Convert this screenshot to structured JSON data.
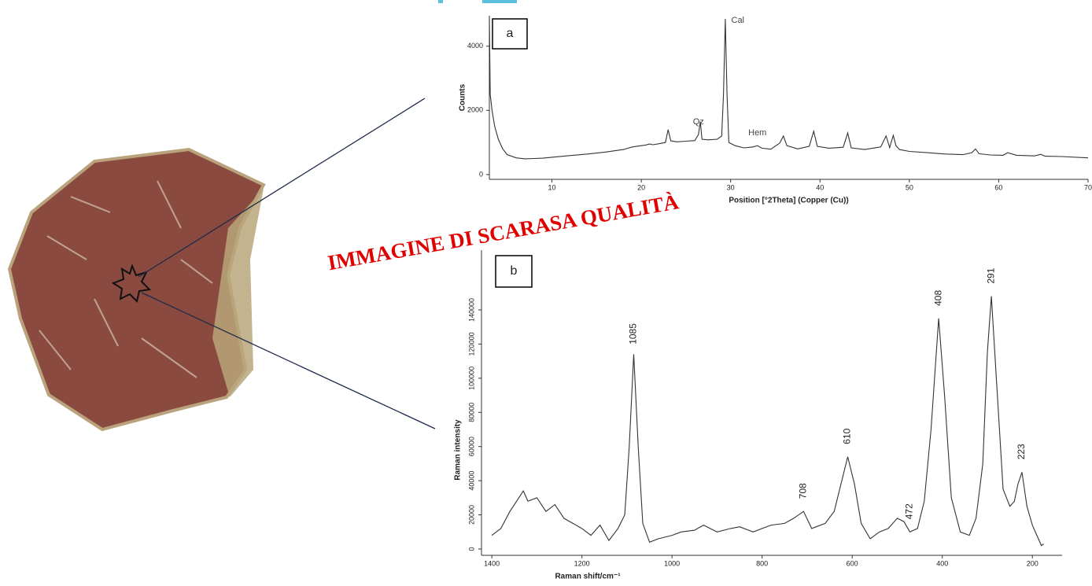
{
  "watermark": "IMMAGINE DI SCARASA QUALITÀ",
  "chart_data": [
    {
      "type": "line",
      "panel_label": "a",
      "x_label": "Position [°2Theta] (Copper (Cu))",
      "y_label": "Counts",
      "xlim": [
        3,
        70
      ],
      "ylim": [
        -150,
        4950
      ],
      "xticks": [
        10,
        20,
        30,
        40,
        50,
        60,
        70
      ],
      "yticks": [
        0,
        2000,
        4000
      ],
      "annotations": [
        {
          "text": "Cal",
          "x": 30.8
        },
        {
          "text": "Qz",
          "x": 26.4
        },
        {
          "text": "Hem",
          "x": 33
        }
      ],
      "x": [
        3,
        3.1,
        3.3,
        3.6,
        4,
        4.5,
        5,
        6,
        7,
        8,
        9,
        10,
        12,
        14,
        16,
        18,
        19,
        20,
        20.5,
        20.9,
        21.3,
        22,
        22.7,
        23,
        23.3,
        24,
        25,
        26,
        26.4,
        26.6,
        26.8,
        27.5,
        28.5,
        29,
        29.2,
        29.4,
        29.6,
        29.8,
        30.5,
        31.5,
        32.5,
        33,
        33.5,
        34.5,
        35.5,
        35.9,
        36.3,
        37.5,
        38.8,
        39.3,
        39.7,
        41,
        42.6,
        43.1,
        43.5,
        45,
        46.8,
        47.4,
        47.8,
        48.2,
        48.5,
        48.9,
        50,
        52,
        54,
        56,
        57,
        57.4,
        57.8,
        59,
        60.5,
        61,
        62,
        64,
        64.7,
        65.2,
        67,
        70
      ],
      "series": [
        {
          "color": "#333333",
          "values": [
            4900,
            2500,
            2000,
            1500,
            1100,
            800,
            620,
            520,
            490,
            500,
            510,
            540,
            590,
            640,
            700,
            780,
            860,
            900,
            920,
            950,
            930,
            960,
            1000,
            1400,
            1050,
            1020,
            1040,
            1060,
            1250,
            1650,
            1100,
            1080,
            1100,
            1200,
            2500,
            4850,
            2500,
            1000,
            900,
            830,
            860,
            900,
            820,
            790,
            980,
            1200,
            900,
            800,
            880,
            1350,
            880,
            820,
            850,
            1300,
            830,
            780,
            860,
            1200,
            840,
            1220,
            900,
            780,
            720,
            680,
            640,
            620,
            680,
            800,
            650,
            610,
            600,
            680,
            600,
            580,
            630,
            570,
            560,
            520
          ]
        }
      ]
    },
    {
      "type": "line",
      "panel_label": "b",
      "x_label": "Raman shift/cm⁻¹",
      "y_label": "Raman intensity",
      "xlim": [
        1423,
        134
      ],
      "ylim": [
        -3700,
        175000
      ],
      "xticks": [
        1400,
        1200,
        1000,
        800,
        600,
        400,
        200
      ],
      "yticks": [
        0,
        20000,
        40000,
        60000,
        80000,
        100000,
        120000,
        140000
      ],
      "peak_labels": [
        1085,
        708,
        610,
        472,
        408,
        291,
        223
      ],
      "x": [
        1400,
        1380,
        1360,
        1340,
        1330,
        1320,
        1300,
        1280,
        1260,
        1240,
        1220,
        1200,
        1180,
        1160,
        1140,
        1120,
        1105,
        1095,
        1085,
        1075,
        1065,
        1050,
        1030,
        1000,
        980,
        950,
        930,
        900,
        870,
        850,
        820,
        800,
        780,
        750,
        730,
        708,
        690,
        660,
        640,
        625,
        610,
        595,
        580,
        560,
        540,
        520,
        500,
        485,
        472,
        455,
        440,
        425,
        408,
        395,
        380,
        360,
        340,
        325,
        310,
        300,
        291,
        280,
        265,
        250,
        240,
        232,
        223,
        212,
        200,
        190,
        180,
        175
      ],
      "series": [
        {
          "color": "#333333",
          "values": [
            8000,
            12000,
            22000,
            30000,
            34000,
            28000,
            30000,
            22000,
            26000,
            18000,
            15000,
            12000,
            8000,
            14000,
            5000,
            12000,
            20000,
            60000,
            114000,
            60000,
            15000,
            4000,
            6000,
            8000,
            10000,
            11000,
            14000,
            10000,
            12000,
            13000,
            10000,
            12000,
            14000,
            15000,
            18000,
            22000,
            12000,
            15000,
            22000,
            38000,
            54000,
            38000,
            15000,
            6000,
            10000,
            12000,
            18000,
            16000,
            10000,
            12000,
            28000,
            70000,
            135000,
            90000,
            30000,
            10000,
            8000,
            18000,
            50000,
            115000,
            148000,
            100000,
            35000,
            25000,
            28000,
            38000,
            45000,
            25000,
            14000,
            8000,
            2000,
            3000
          ]
        }
      ]
    }
  ]
}
